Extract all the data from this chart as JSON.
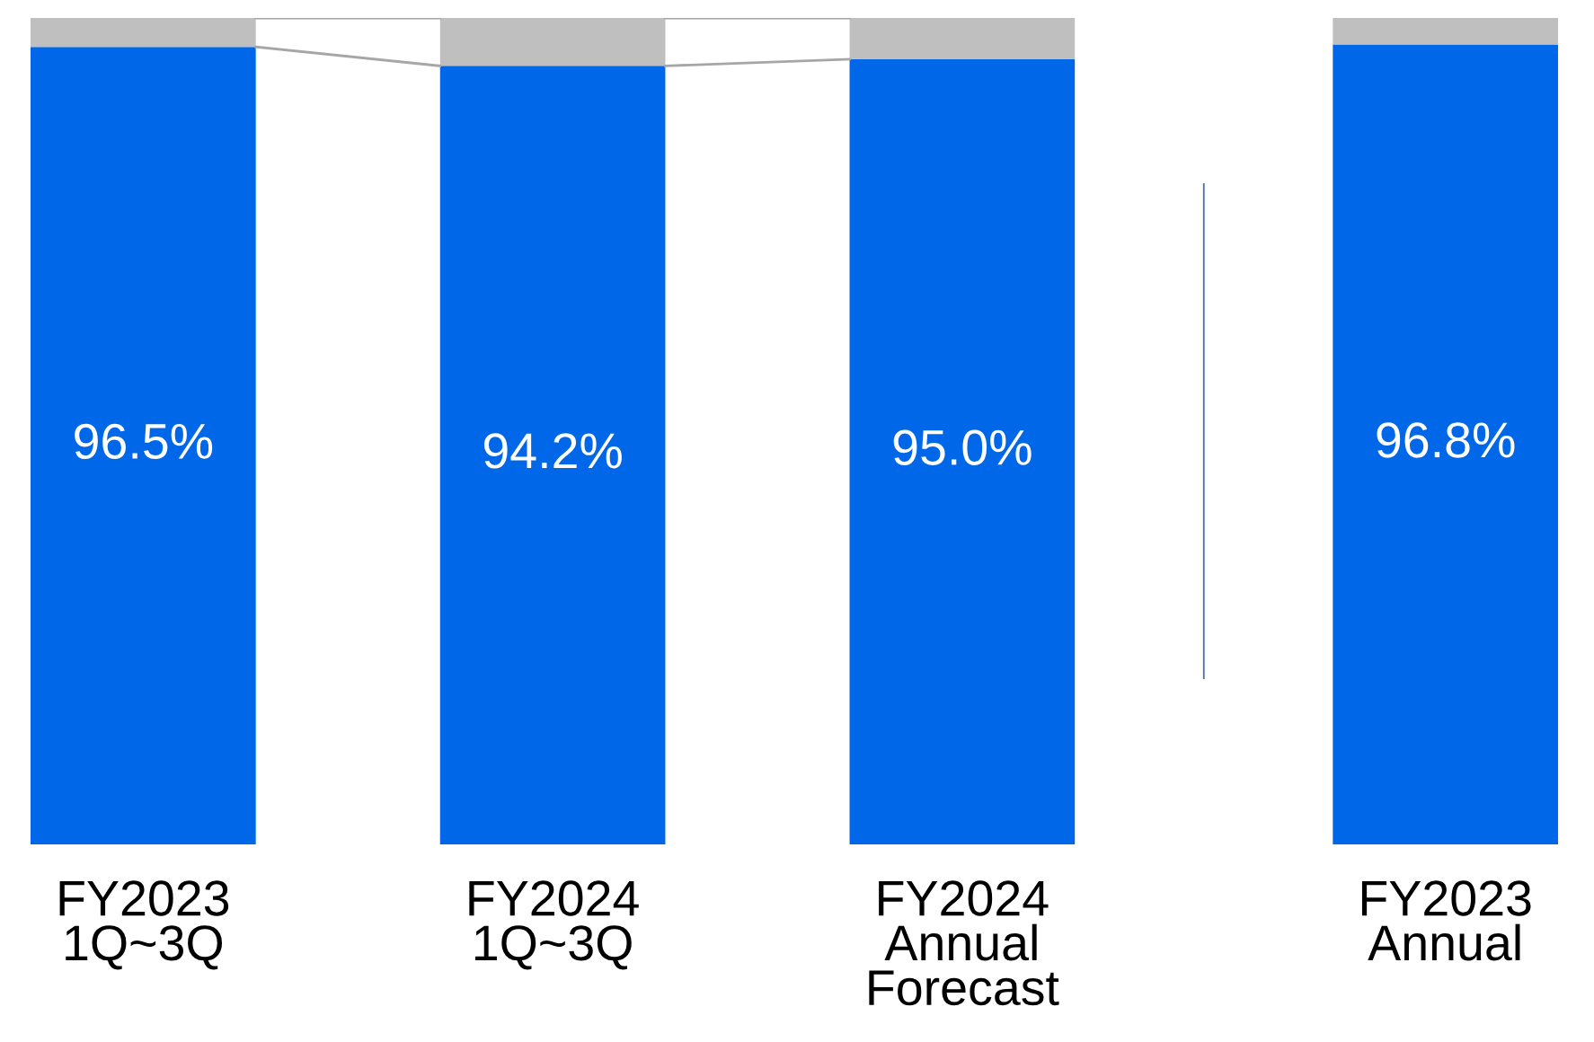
{
  "chart_data": {
    "type": "bar",
    "stacked": true,
    "tick_labels": "x",
    "categories": [
      "FY2023\n1Q~3Q",
      "FY2024\n1Q~3Q",
      "FY2024\nAnnual\nForecast",
      "FY2023\nAnnual"
    ],
    "series": [
      {
        "color": "#0068e8",
        "values": [
          96.5,
          94.2,
          95.0,
          96.8
        ],
        "value_labels": [
          "96.5%",
          "94.2%",
          "95.0%",
          "96.8%"
        ]
      },
      {
        "color": "#bfbfbf",
        "values": [
          3.5,
          5.8,
          5.0,
          3.2
        ]
      }
    ]
  }
}
